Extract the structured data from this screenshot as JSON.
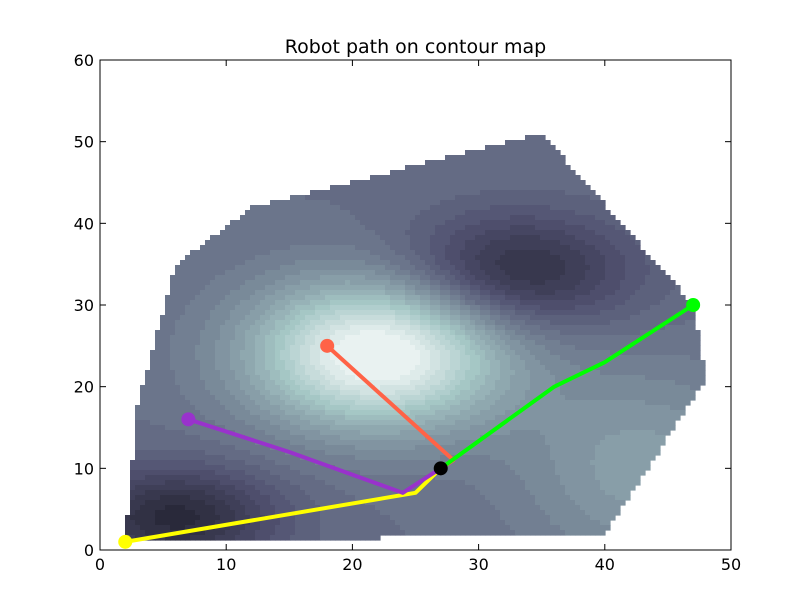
{
  "chart_data": {
    "type": "line",
    "title": "Robot path on contour map",
    "xlabel": "",
    "ylabel": "",
    "xlim": [
      0,
      50
    ],
    "ylim": [
      0,
      60
    ],
    "xticks": [
      0,
      10,
      20,
      30,
      40,
      50
    ],
    "yticks": [
      0,
      10,
      20,
      30,
      40,
      50,
      60
    ],
    "grid": false,
    "contour": {
      "colormap": "bone",
      "region_vertices": [
        [
          2,
          1
        ],
        [
          3,
          18
        ],
        [
          6,
          35
        ],
        [
          12,
          42
        ],
        [
          35,
          51
        ],
        [
          47,
          30
        ],
        [
          48,
          21
        ],
        [
          40,
          2
        ]
      ],
      "peak": {
        "x": 22,
        "y": 24,
        "level": "high"
      },
      "valleys": [
        {
          "x": 6,
          "y": 4
        },
        {
          "x": 33,
          "y": 34
        }
      ]
    },
    "meeting_point": {
      "x": 27,
      "y": 10,
      "color": "#000000"
    },
    "series": [
      {
        "color": "#ffff00",
        "x": [
          2,
          25,
          27
        ],
        "y": [
          1,
          7,
          10
        ]
      },
      {
        "color": "#9932cc",
        "x": [
          7,
          15,
          24,
          27
        ],
        "y": [
          16,
          12,
          7,
          10
        ]
      },
      {
        "color": "#ff6347",
        "x": [
          18,
          28,
          27
        ],
        "y": [
          25,
          11,
          10
        ]
      },
      {
        "color": "#00ff00",
        "x": [
          47,
          40,
          36,
          27
        ],
        "y": [
          30,
          23,
          20,
          10
        ]
      }
    ]
  }
}
